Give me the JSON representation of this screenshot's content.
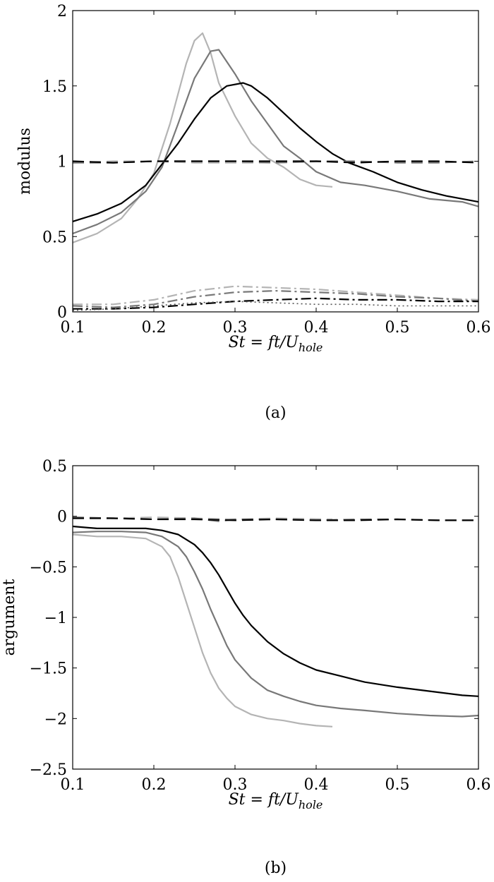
{
  "chart_data": [
    {
      "type": "line",
      "panel_label": "(a)",
      "ylabel": "modulus",
      "xlabel": {
        "main": "St = ft/U",
        "sub": "hole"
      },
      "xlim": [
        0.1,
        0.6
      ],
      "ylim": [
        0,
        2
      ],
      "xticks": [
        "0.1",
        "0.2",
        "0.3",
        "0.4",
        "0.5",
        "0.6"
      ],
      "yticks": [
        "0",
        "0.5",
        "1",
        "1.5",
        "2"
      ],
      "grid": false,
      "series": [
        {
          "color": "#b4b4b4",
          "dash": "solid",
          "x": [
            0.1,
            0.13,
            0.16,
            0.18,
            0.2,
            0.22,
            0.24,
            0.25,
            0.26,
            0.27,
            0.28,
            0.3,
            0.32,
            0.34,
            0.36,
            0.38,
            0.4,
            0.42
          ],
          "y": [
            0.46,
            0.52,
            0.62,
            0.75,
            0.92,
            1.25,
            1.65,
            1.8,
            1.85,
            1.72,
            1.52,
            1.3,
            1.12,
            1.02,
            0.96,
            0.88,
            0.84,
            0.83
          ]
        },
        {
          "color": "#787878",
          "dash": "solid",
          "x": [
            0.1,
            0.13,
            0.16,
            0.19,
            0.21,
            0.23,
            0.25,
            0.27,
            0.28,
            0.29,
            0.3,
            0.32,
            0.34,
            0.36,
            0.38,
            0.4,
            0.43,
            0.46,
            0.5,
            0.54,
            0.58,
            0.6
          ],
          "y": [
            0.52,
            0.58,
            0.66,
            0.8,
            0.96,
            1.25,
            1.55,
            1.73,
            1.74,
            1.66,
            1.58,
            1.4,
            1.25,
            1.1,
            1.02,
            0.93,
            0.86,
            0.84,
            0.8,
            0.75,
            0.73,
            0.7
          ]
        },
        {
          "color": "#000000",
          "dash": "solid",
          "x": [
            0.1,
            0.13,
            0.16,
            0.19,
            0.21,
            0.23,
            0.25,
            0.27,
            0.29,
            0.31,
            0.32,
            0.34,
            0.36,
            0.38,
            0.4,
            0.42,
            0.44,
            0.47,
            0.5,
            0.53,
            0.56,
            0.6
          ],
          "y": [
            0.6,
            0.65,
            0.72,
            0.84,
            0.98,
            1.12,
            1.28,
            1.42,
            1.5,
            1.52,
            1.5,
            1.42,
            1.32,
            1.22,
            1.13,
            1.05,
            0.99,
            0.93,
            0.86,
            0.81,
            0.77,
            0.73
          ]
        },
        {
          "color": "#b4b4b4",
          "dash": "dashed",
          "x": [
            0.1,
            0.15,
            0.2,
            0.25,
            0.3,
            0.35,
            0.42
          ],
          "y": [
            0.99,
            1.0,
            1.0,
            0.99,
            0.99,
            0.99,
            1.0
          ]
        },
        {
          "color": "#787878",
          "dash": "dashed",
          "x": [
            0.1,
            0.15,
            0.2,
            0.25,
            0.3,
            0.35,
            0.4,
            0.45,
            0.5,
            0.55,
            0.6
          ],
          "y": [
            0.99,
            0.99,
            1.0,
            1.0,
            1.0,
            0.99,
            1.0,
            1.0,
            0.99,
            0.99,
            1.0
          ]
        },
        {
          "color": "#000000",
          "dash": "dashed",
          "x": [
            0.1,
            0.15,
            0.2,
            0.25,
            0.3,
            0.35,
            0.4,
            0.45,
            0.5,
            0.55,
            0.6
          ],
          "y": [
            1.0,
            0.99,
            1.0,
            1.0,
            1.0,
            1.0,
            1.0,
            0.99,
            1.0,
            1.0,
            0.99
          ]
        },
        {
          "color": "#b4b4b4",
          "dash": "dashdot",
          "x": [
            0.1,
            0.15,
            0.2,
            0.25,
            0.3,
            0.35,
            0.4,
            0.45,
            0.5,
            0.55,
            0.6
          ],
          "y": [
            0.05,
            0.05,
            0.08,
            0.14,
            0.17,
            0.16,
            0.15,
            0.13,
            0.11,
            0.09,
            0.08
          ]
        },
        {
          "color": "#787878",
          "dash": "dashdot",
          "x": [
            0.1,
            0.15,
            0.2,
            0.25,
            0.3,
            0.35,
            0.4,
            0.45,
            0.5,
            0.55,
            0.6
          ],
          "y": [
            0.04,
            0.03,
            0.05,
            0.1,
            0.13,
            0.14,
            0.13,
            0.12,
            0.1,
            0.09,
            0.07
          ]
        },
        {
          "color": "#000000",
          "dash": "dashdot",
          "x": [
            0.1,
            0.15,
            0.2,
            0.25,
            0.3,
            0.35,
            0.4,
            0.45,
            0.5,
            0.55,
            0.6
          ],
          "y": [
            0.02,
            0.02,
            0.03,
            0.05,
            0.07,
            0.08,
            0.09,
            0.08,
            0.08,
            0.07,
            0.07
          ]
        },
        {
          "color": "#555555",
          "dash": "dotted",
          "x": [
            0.1,
            0.15,
            0.2,
            0.25,
            0.3,
            0.35,
            0.4,
            0.45,
            0.5,
            0.55,
            0.6
          ],
          "y": [
            0.01,
            0.02,
            0.04,
            0.06,
            0.07,
            0.06,
            0.05,
            0.05,
            0.04,
            0.04,
            0.04
          ]
        }
      ]
    },
    {
      "type": "line",
      "panel_label": "(b)",
      "ylabel": "argument",
      "xlabel": {
        "main": "St = ft/U",
        "sub": "hole"
      },
      "xlim": [
        0.1,
        0.6
      ],
      "ylim": [
        -2.5,
        0.5
      ],
      "xticks": [
        "0.1",
        "0.2",
        "0.3",
        "0.4",
        "0.5",
        "0.6"
      ],
      "yticks": [
        "0.5",
        "0",
        "−0.5",
        "−1",
        "−1.5",
        "−2",
        "−2.5"
      ],
      "grid": false,
      "series": [
        {
          "color": "#b4b4b4",
          "dash": "solid",
          "x": [
            0.1,
            0.13,
            0.16,
            0.19,
            0.21,
            0.22,
            0.23,
            0.24,
            0.25,
            0.26,
            0.27,
            0.28,
            0.29,
            0.3,
            0.32,
            0.34,
            0.36,
            0.38,
            0.4,
            0.42
          ],
          "y": [
            -0.18,
            -0.2,
            -0.2,
            -0.22,
            -0.3,
            -0.4,
            -0.6,
            -0.85,
            -1.1,
            -1.35,
            -1.55,
            -1.7,
            -1.8,
            -1.88,
            -1.96,
            -2.0,
            -2.02,
            -2.05,
            -2.07,
            -2.08
          ]
        },
        {
          "color": "#787878",
          "dash": "solid",
          "x": [
            0.1,
            0.13,
            0.16,
            0.19,
            0.21,
            0.23,
            0.24,
            0.25,
            0.26,
            0.27,
            0.28,
            0.29,
            0.3,
            0.32,
            0.34,
            0.36,
            0.38,
            0.4,
            0.43,
            0.46,
            0.5,
            0.54,
            0.58,
            0.6
          ],
          "y": [
            -0.16,
            -0.15,
            -0.15,
            -0.16,
            -0.2,
            -0.3,
            -0.4,
            -0.55,
            -0.72,
            -0.92,
            -1.1,
            -1.28,
            -1.42,
            -1.6,
            -1.72,
            -1.78,
            -1.83,
            -1.87,
            -1.9,
            -1.92,
            -1.95,
            -1.97,
            -1.98,
            -1.97
          ]
        },
        {
          "color": "#000000",
          "dash": "solid",
          "x": [
            0.1,
            0.13,
            0.16,
            0.19,
            0.21,
            0.23,
            0.25,
            0.26,
            0.27,
            0.28,
            0.29,
            0.3,
            0.31,
            0.32,
            0.34,
            0.36,
            0.38,
            0.4,
            0.43,
            0.46,
            0.5,
            0.54,
            0.58,
            0.6
          ],
          "y": [
            -0.1,
            -0.12,
            -0.12,
            -0.12,
            -0.14,
            -0.18,
            -0.28,
            -0.36,
            -0.46,
            -0.58,
            -0.72,
            -0.86,
            -0.98,
            -1.08,
            -1.24,
            -1.36,
            -1.45,
            -1.52,
            -1.58,
            -1.64,
            -1.69,
            -1.73,
            -1.77,
            -1.78
          ]
        },
        {
          "color": "#b4b4b4",
          "dash": "dashed",
          "x": [
            0.1,
            0.15,
            0.2,
            0.25,
            0.3,
            0.35,
            0.42
          ],
          "y": [
            -0.01,
            -0.02,
            -0.01,
            -0.02,
            -0.03,
            -0.02,
            -0.03
          ]
        },
        {
          "color": "#787878",
          "dash": "dashed",
          "x": [
            0.1,
            0.15,
            0.2,
            0.25,
            0.28,
            0.3,
            0.35,
            0.4,
            0.45,
            0.5,
            0.55,
            0.6
          ],
          "y": [
            -0.01,
            -0.02,
            -0.03,
            -0.02,
            -0.05,
            -0.03,
            -0.03,
            -0.04,
            -0.03,
            -0.03,
            -0.04,
            -0.04
          ]
        },
        {
          "color": "#000000",
          "dash": "dashed",
          "x": [
            0.1,
            0.15,
            0.2,
            0.25,
            0.3,
            0.35,
            0.4,
            0.45,
            0.5,
            0.55,
            0.6
          ],
          "y": [
            -0.02,
            -0.02,
            -0.03,
            -0.03,
            -0.04,
            -0.03,
            -0.04,
            -0.04,
            -0.03,
            -0.04,
            -0.04
          ]
        }
      ]
    }
  ]
}
